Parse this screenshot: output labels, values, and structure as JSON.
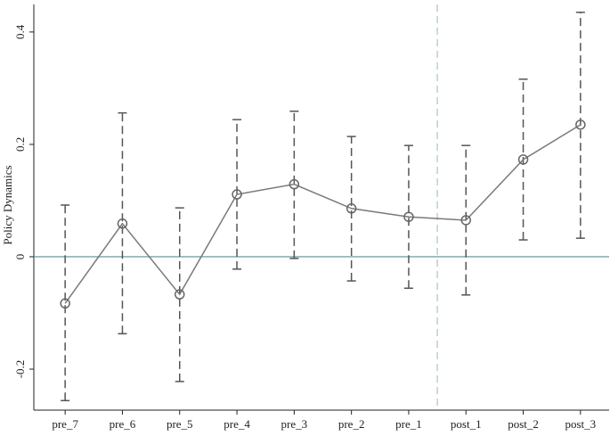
{
  "chart_data": {
    "type": "errorbar-line",
    "y_label": "Policy Dynamics",
    "categories": [
      "pre_7",
      "pre_6",
      "pre_5",
      "pre_4",
      "pre_3",
      "pre_2",
      "pre_1",
      "post_1",
      "post_2",
      "post_3"
    ],
    "series": [
      {
        "color": "#7a7a7a",
        "values": [
          -0.083,
          0.059,
          -0.067,
          0.111,
          0.129,
          0.086,
          0.071,
          0.065,
          0.173,
          0.235
        ],
        "lower": [
          -0.256,
          -0.137,
          -0.222,
          -0.022,
          -0.003,
          -0.043,
          -0.056,
          -0.068,
          0.03,
          0.033
        ],
        "upper": [
          0.092,
          0.256,
          0.087,
          0.244,
          0.259,
          0.214,
          0.198,
          0.198,
          0.316,
          0.435
        ]
      }
    ],
    "ylim": [
      -0.273,
      0.449
    ],
    "yticks": [
      -0.2,
      0,
      0.2,
      0.4
    ],
    "reference_line": 0
  }
}
